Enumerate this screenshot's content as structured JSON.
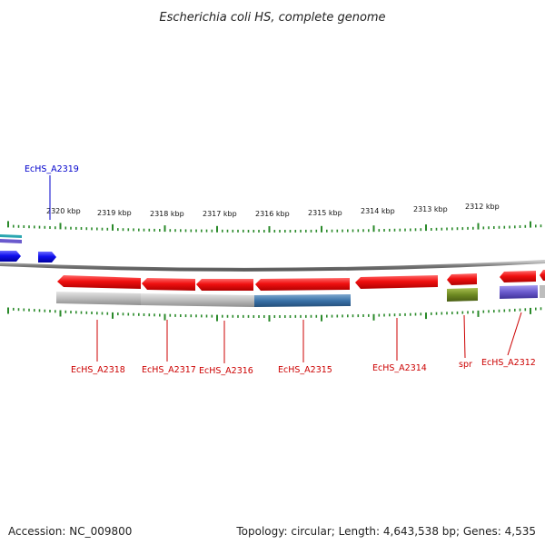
{
  "title": "Escherichia coli HS, complete genome",
  "footer": {
    "accession": "Accession: NC_009800",
    "summary": "Topology: circular; Length: 4,643,538 bp; Genes: 4,535"
  },
  "ticks": [
    "2320 kbp",
    "2319 kbp",
    "2318 kbp",
    "2317 kbp",
    "2316 kbp",
    "2315 kbp",
    "2314 kbp",
    "2313 kbp",
    "2312 kbp"
  ],
  "genes": [
    {
      "name": "EcHS_A2319",
      "strand": "forward",
      "color": "#0000cc"
    },
    {
      "name": "EcHS_A2318",
      "strand": "reverse",
      "color": "#cc0000"
    },
    {
      "name": "EcHS_A2317",
      "strand": "reverse",
      "color": "#cc0000"
    },
    {
      "name": "EcHS_A2316",
      "strand": "reverse",
      "color": "#cc0000"
    },
    {
      "name": "EcHS_A2315",
      "strand": "reverse",
      "color": "#cc0000"
    },
    {
      "name": "EcHS_A2314",
      "strand": "reverse",
      "color": "#cc0000"
    },
    {
      "name": "spr",
      "strand": "reverse",
      "color": "#cc0000"
    },
    {
      "name": "EcHS_A2312",
      "strand": "reverse",
      "color": "#cc0000"
    }
  ],
  "colors": {
    "forward_gene": "#1010ee",
    "reverse_gene": "#ee1111",
    "backbone": "#888888",
    "tick": "#2a8a2a",
    "feature_gray": "#b8b8b8",
    "feature_blue": "#3a72a8",
    "feature_green": "#6e8a22",
    "feature_purple": "#6a5acd",
    "feature_teal": "#2aa6b0"
  }
}
